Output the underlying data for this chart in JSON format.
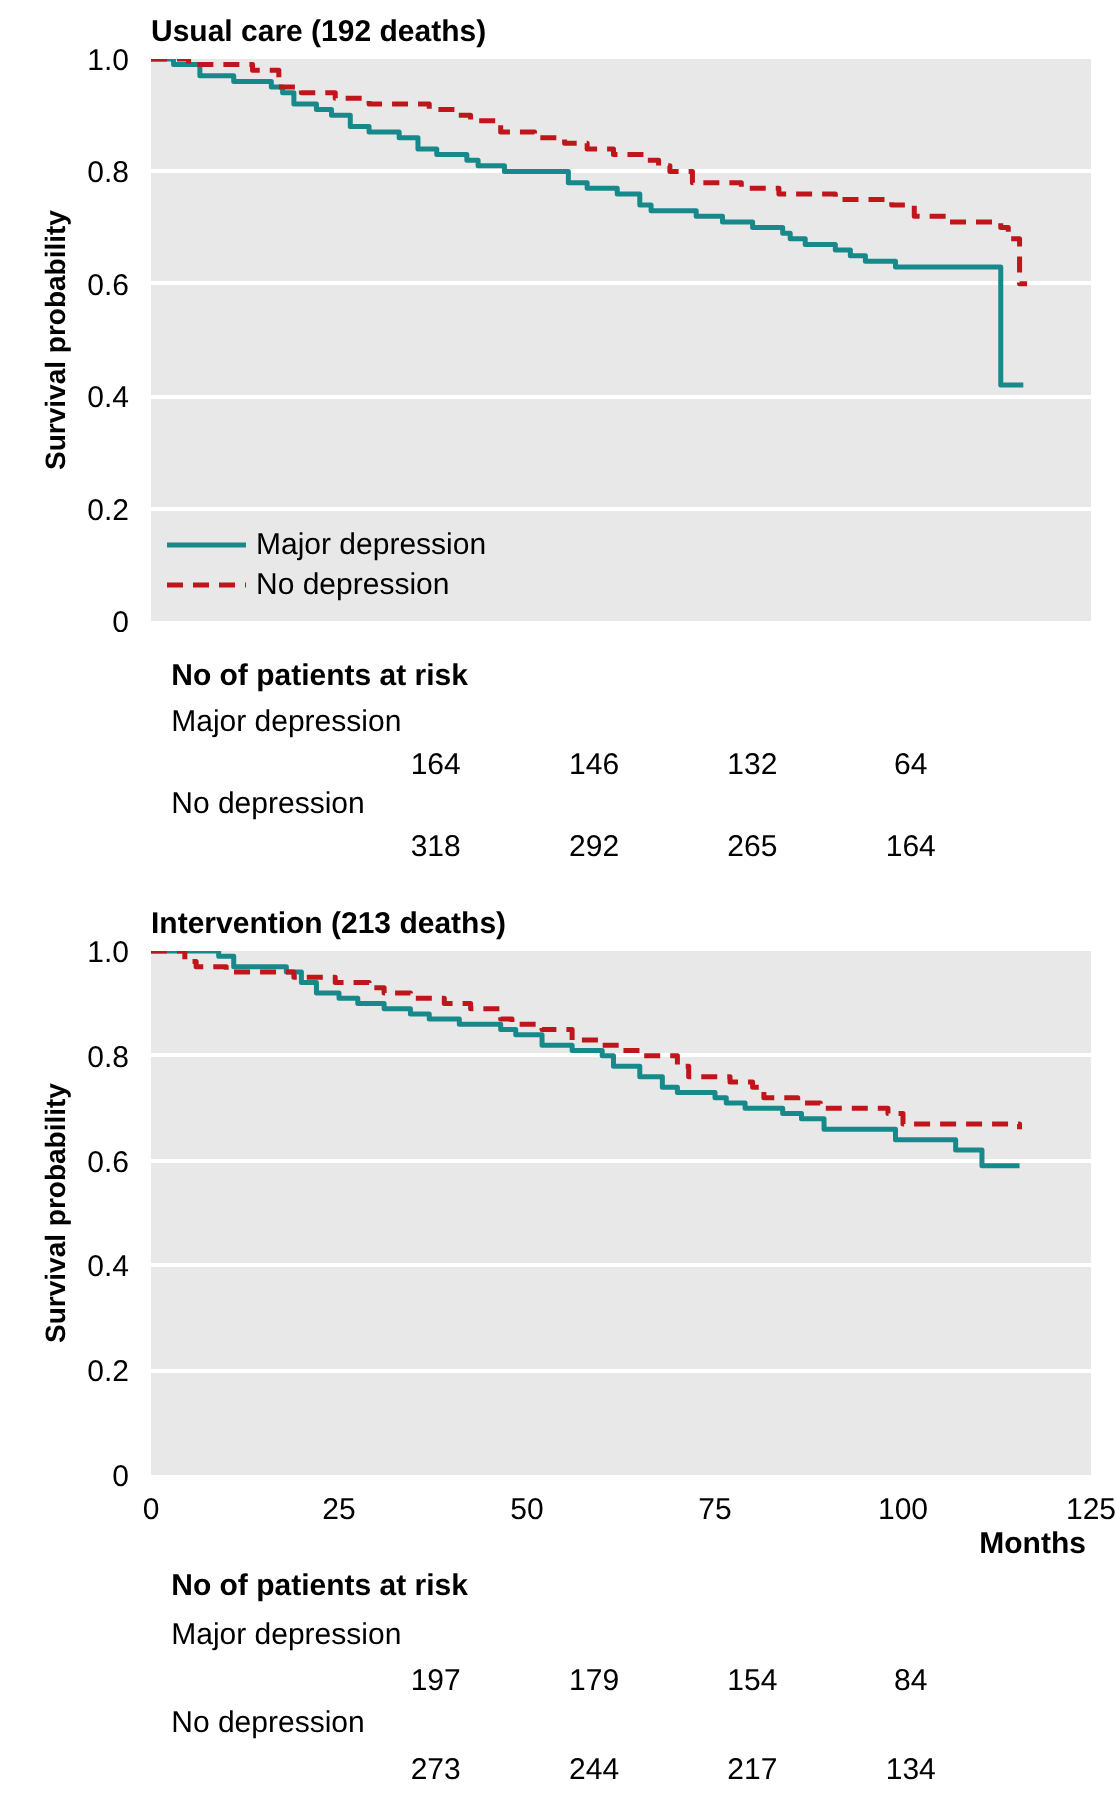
{
  "chart_data": [
    {
      "type": "step",
      "title": "Usual care (192 deaths)",
      "ylabel": "Survival probability",
      "xlim": [
        0,
        125
      ],
      "xticks": [
        0,
        25,
        50,
        75,
        100,
        125
      ],
      "ylim": [
        0,
        1
      ],
      "yticks": [
        0,
        0.2,
        0.4,
        0.6,
        0.8,
        {
          "value": 1,
          "label": "1.0"
        }
      ],
      "tick_labels": "y",
      "grid": "y",
      "legend": "bottom left",
      "series": [
        {
          "name": "Major depression",
          "color": "#17898a",
          "line_style": "solid",
          "x": [
            0,
            3,
            6.5,
            11,
            16,
            17.5,
            19,
            22,
            24,
            26.5,
            29,
            33,
            35.5,
            38,
            42,
            43.5,
            47,
            55.5,
            58,
            62,
            65,
            66.5,
            72.5,
            76,
            80,
            84,
            85,
            87,
            91,
            93,
            95,
            99,
            113,
            116
          ],
          "values": [
            1.0,
            0.99,
            0.97,
            0.96,
            0.95,
            0.94,
            0.92,
            0.91,
            0.9,
            0.88,
            0.87,
            0.86,
            0.84,
            0.83,
            0.82,
            0.81,
            0.8,
            0.78,
            0.77,
            0.76,
            0.74,
            0.73,
            0.72,
            0.71,
            0.7,
            0.69,
            0.68,
            0.67,
            0.66,
            0.65,
            0.64,
            0.63,
            0.42,
            0.42
          ]
        },
        {
          "name": "No depression",
          "color": "#c0161b",
          "line_style": "dashed",
          "x": [
            0,
            5,
            13.5,
            17,
            20,
            24.5,
            29,
            37,
            40.5,
            42.5,
            46.5,
            51,
            55,
            58,
            61.5,
            65.5,
            67.5,
            69,
            72,
            78.5,
            83.5,
            91,
            98.5,
            101.5,
            106,
            113,
            114,
            115.5,
            116.5
          ],
          "values": [
            1.0,
            0.99,
            0.98,
            0.95,
            0.94,
            0.93,
            0.92,
            0.91,
            0.9,
            0.89,
            0.87,
            0.86,
            0.85,
            0.84,
            0.83,
            0.82,
            0.81,
            0.8,
            0.78,
            0.77,
            0.76,
            0.75,
            0.74,
            0.72,
            0.71,
            0.7,
            0.68,
            0.6,
            0.6
          ]
        }
      ],
      "annotations": [
        "No of patients at risk",
        "Major depression",
        "164",
        "146",
        "132",
        "64",
        "No depression",
        "318",
        "292",
        "265",
        "164"
      ]
    },
    {
      "type": "step",
      "title": "Intervention (213 deaths)",
      "ylabel": "Survival probability",
      "xlabel": "Months",
      "xlim": [
        0,
        125
      ],
      "xticks": [
        0,
        25,
        50,
        75,
        100,
        125
      ],
      "ylim": [
        0,
        1
      ],
      "yticks": [
        0,
        0.2,
        0.4,
        0.6,
        0.8,
        {
          "value": 1,
          "label": "1.0"
        }
      ],
      "grid": "y",
      "series": [
        {
          "color": "#17898a",
          "line_style": "solid",
          "x": [
            0,
            9,
            11,
            18,
            20,
            22,
            25,
            27.5,
            31,
            34.5,
            37,
            41,
            46.5,
            48.5,
            52,
            56,
            60,
            61.5,
            65,
            68,
            70,
            75,
            76.5,
            79,
            84,
            86.5,
            89.5,
            99,
            107,
            110.5,
            115.5
          ],
          "values": [
            1.0,
            0.99,
            0.97,
            0.96,
            0.94,
            0.92,
            0.91,
            0.9,
            0.89,
            0.88,
            0.87,
            0.86,
            0.85,
            0.84,
            0.82,
            0.81,
            0.8,
            0.78,
            0.76,
            0.74,
            0.73,
            0.72,
            0.71,
            0.7,
            0.69,
            0.68,
            0.66,
            0.64,
            0.62,
            0.59,
            0.59
          ]
        },
        {
          "color": "#c0161b",
          "line_style": "dashed",
          "x": [
            0,
            4.5,
            6,
            10,
            19,
            24.5,
            29,
            31,
            34.5,
            39,
            42.5,
            46.5,
            48,
            52,
            56,
            60,
            62.5,
            65.5,
            70,
            71.5,
            77,
            80,
            81.5,
            86,
            89,
            98,
            100,
            115.5
          ],
          "values": [
            1.0,
            0.98,
            0.97,
            0.96,
            0.95,
            0.94,
            0.93,
            0.92,
            0.91,
            0.9,
            0.89,
            0.87,
            0.86,
            0.85,
            0.83,
            0.82,
            0.81,
            0.8,
            0.78,
            0.76,
            0.75,
            0.74,
            0.72,
            0.71,
            0.7,
            0.69,
            0.67,
            0.66
          ]
        }
      ],
      "annotations": [
        "No of patients at risk",
        "Major depression",
        "197",
        "179",
        "154",
        "84",
        "No depression",
        "273",
        "244",
        "217",
        "134"
      ]
    }
  ]
}
